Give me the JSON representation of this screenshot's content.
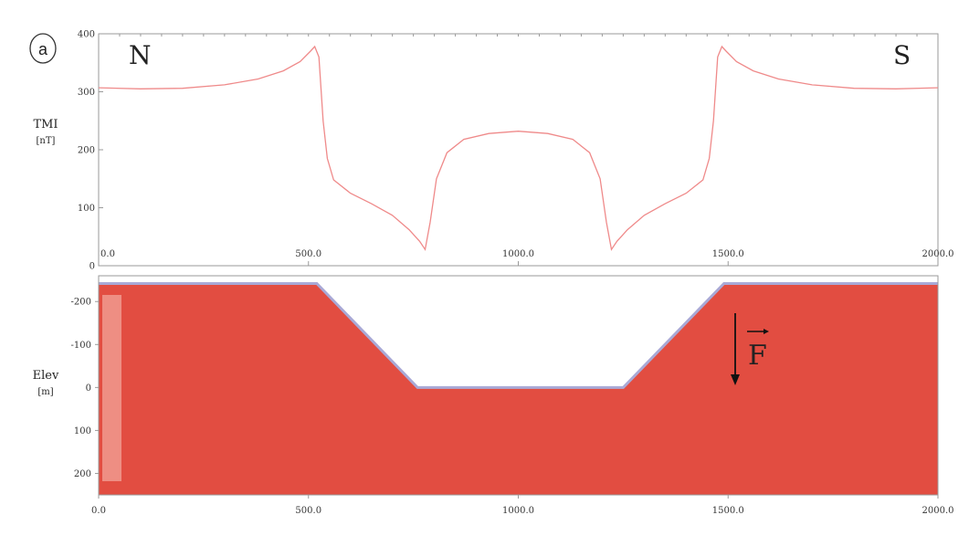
{
  "panel_letter": "a",
  "corner_labels": {
    "left": "N",
    "right": "S"
  },
  "force_label": "F",
  "colors": {
    "body_fill": "#e24d41",
    "body_edge": "#a9a9d6",
    "curve": "#ef8a8a",
    "inset": "#f09a8f"
  },
  "chart_data": [
    {
      "type": "line",
      "title": "",
      "ylabel": "TMI",
      "yunit": "[nT]",
      "xlabel": "",
      "xlim": [
        0,
        2000
      ],
      "ylim": [
        0,
        400
      ],
      "x_ticks": [
        "0.0",
        "500.0",
        "1000.0",
        "1500.0",
        "2000.0"
      ],
      "y_ticks": [
        "0",
        "100",
        "200",
        "300",
        "400"
      ],
      "grid": false,
      "series": [
        {
          "x": [
            0,
            100,
            200,
            300,
            380,
            440,
            480,
            505,
            515,
            525,
            535,
            545,
            560,
            600,
            650,
            700,
            740,
            765,
            778,
            790,
            805,
            830,
            870,
            930,
            1000,
            1070,
            1130,
            1170,
            1195,
            1210,
            1222,
            1235,
            1260,
            1300,
            1350,
            1400,
            1440,
            1455,
            1465,
            1475,
            1485,
            1495,
            1520,
            1560,
            1620,
            1700,
            1800,
            1900,
            2000
          ],
          "y": [
            307,
            305,
            306,
            312,
            322,
            336,
            352,
            370,
            378,
            360,
            250,
            185,
            148,
            125,
            107,
            87,
            62,
            42,
            28,
            75,
            150,
            195,
            218,
            228,
            232,
            228,
            218,
            195,
            150,
            75,
            28,
            42,
            62,
            87,
            107,
            125,
            148,
            185,
            250,
            360,
            378,
            370,
            352,
            336,
            322,
            312,
            306,
            305,
            307
          ]
        }
      ]
    },
    {
      "type": "area",
      "title": "",
      "ylabel": "Elev",
      "yunit": "[m]",
      "xlabel": "",
      "xlim": [
        0,
        2000
      ],
      "ylim": [
        250,
        -260
      ],
      "x_ticks": [
        "0.0",
        "500.0",
        "1000.0",
        "1500.0",
        "2000.0"
      ],
      "y_ticks": [
        "-200",
        "-100",
        "0",
        "100",
        "200"
      ],
      "grid": false,
      "series": [
        {
          "x": [
            0,
            520,
            760,
            1250,
            1490,
            2000
          ],
          "y": [
            -242,
            -242,
            0,
            0,
            -242,
            -242
          ]
        }
      ]
    }
  ]
}
